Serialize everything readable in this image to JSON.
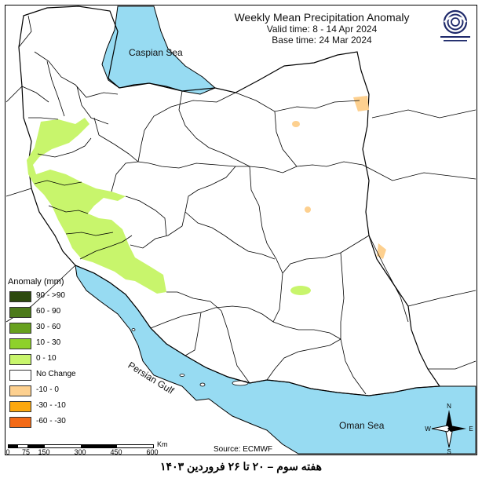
{
  "title": "Weekly Mean Precipitation Anomaly",
  "valid_time": "Valid time: 8 - 14 Apr 2024",
  "base_time": "Base time: 24 Mar 2024",
  "legend": {
    "heading": "Anomaly (mm)",
    "items": [
      {
        "label": "90 - >90",
        "color": "#2d4a0e"
      },
      {
        "label": "60 - 90",
        "color": "#4c7a1a"
      },
      {
        "label": "30 - 60",
        "color": "#67a11f"
      },
      {
        "label": "10 - 30",
        "color": "#8ed12a"
      },
      {
        "label": "0 - 10",
        "color": "#c8f56c"
      },
      {
        "label": "No Change",
        "color": "#ffffff"
      },
      {
        "label": "-10 - 0",
        "color": "#fdd08f"
      },
      {
        "label": "-30 - -10",
        "color": "#fca80f"
      },
      {
        "label": "-60 - -30",
        "color": "#f36a16"
      }
    ]
  },
  "scale": {
    "labels": [
      "0",
      "75",
      "150",
      "300",
      "450",
      "600"
    ],
    "unit": "Km"
  },
  "source": "Source: ECMWF",
  "seas": {
    "caspian": "Caspian Sea",
    "gulf": "Persian Gulf",
    "oman": "Oman Sea"
  },
  "compass": {
    "n": "N",
    "s": "S",
    "e": "E",
    "w": "W"
  },
  "caption": "هفته سوم – ۲۰ تا ۲۶ فروردین ۱۴۰۳",
  "colors": {
    "water": "#97dbf2",
    "land": "#ffffff",
    "border": "#000000",
    "positive_light": "#c8f56c",
    "negative_light": "#fdd08f"
  }
}
